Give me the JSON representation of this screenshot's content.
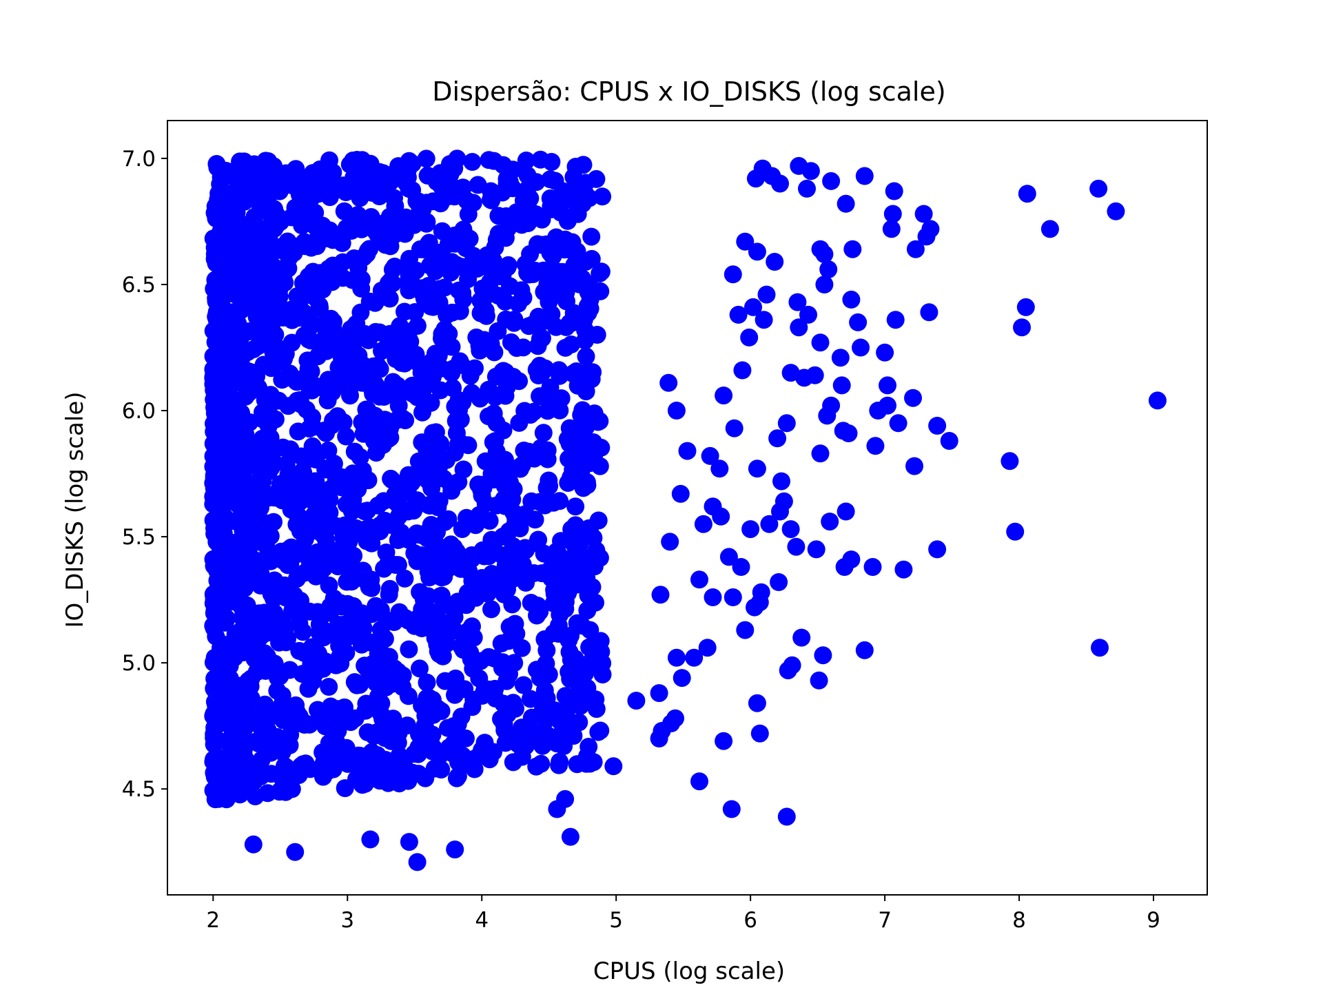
{
  "chart_data": {
    "type": "scatter",
    "title": "Dispersão: CPUS x IO_DISKS (log scale)",
    "xlabel": "CPUS (log scale)",
    "ylabel": "IO_DISKS (log scale)",
    "xlim": [
      1.66,
      9.4
    ],
    "ylim": [
      4.08,
      7.15
    ],
    "xticks": [
      2,
      3,
      4,
      5,
      6,
      7,
      8,
      9
    ],
    "yticks": [
      4.5,
      5.0,
      5.5,
      6.0,
      6.5,
      7.0
    ],
    "xtick_labels": [
      "2",
      "3",
      "4",
      "5",
      "6",
      "7",
      "8",
      "9"
    ],
    "ytick_labels": [
      "4.5",
      "5.0",
      "5.5",
      "6.0",
      "6.5",
      "7.0"
    ],
    "grid": false,
    "legend": "none",
    "marker_color": "#0000ff",
    "dense_region": {
      "x_range": [
        2.0,
        4.9
      ],
      "y_range": [
        4.45,
        7.0
      ],
      "note_color": "#0000ff"
    },
    "points": [
      [
        9.03,
        6.04
      ],
      [
        8.59,
        6.88
      ],
      [
        8.72,
        6.79
      ],
      [
        8.6,
        5.06
      ],
      [
        8.06,
        6.86
      ],
      [
        8.23,
        6.72
      ],
      [
        8.05,
        6.41
      ],
      [
        8.02,
        6.33
      ],
      [
        7.93,
        5.8
      ],
      [
        7.97,
        5.52
      ],
      [
        7.39,
        5.45
      ],
      [
        7.39,
        5.94
      ],
      [
        7.48,
        5.88
      ],
      [
        7.33,
        6.39
      ],
      [
        7.29,
        6.78
      ],
      [
        7.34,
        6.72
      ],
      [
        7.31,
        6.69
      ],
      [
        7.23,
        6.64
      ],
      [
        7.21,
        6.05
      ],
      [
        7.22,
        5.78
      ],
      [
        7.14,
        5.37
      ],
      [
        7.1,
        5.95
      ],
      [
        7.08,
        6.36
      ],
      [
        7.05,
        6.72
      ],
      [
        7.06,
        6.78
      ],
      [
        7.07,
        6.87
      ],
      [
        7.02,
        6.1
      ],
      [
        7.0,
        6.23
      ],
      [
        7.02,
        6.02
      ],
      [
        6.95,
        6.0
      ],
      [
        6.93,
        5.86
      ],
      [
        6.91,
        5.38
      ],
      [
        6.85,
        5.05
      ],
      [
        6.75,
        5.41
      ],
      [
        6.7,
        5.38
      ],
      [
        6.71,
        5.6
      ],
      [
        6.68,
        6.1
      ],
      [
        6.67,
        6.21
      ],
      [
        6.73,
        5.91
      ],
      [
        6.69,
        5.92
      ],
      [
        6.75,
        6.44
      ],
      [
        6.82,
        6.25
      ],
      [
        6.8,
        6.35
      ],
      [
        6.85,
        6.93
      ],
      [
        6.76,
        6.64
      ],
      [
        6.71,
        6.82
      ],
      [
        6.6,
        6.91
      ],
      [
        6.58,
        6.56
      ],
      [
        6.55,
        6.5
      ],
      [
        6.55,
        6.62
      ],
      [
        6.52,
        6.64
      ],
      [
        6.59,
        5.56
      ],
      [
        6.49,
        5.45
      ],
      [
        6.52,
        5.83
      ],
      [
        6.57,
        5.98
      ],
      [
        6.6,
        6.02
      ],
      [
        6.52,
        6.27
      ],
      [
        6.48,
        6.14
      ],
      [
        6.43,
        6.38
      ],
      [
        6.35,
        6.43
      ],
      [
        6.36,
        6.33
      ],
      [
        6.4,
        6.13
      ],
      [
        6.3,
        6.15
      ],
      [
        6.27,
        5.95
      ],
      [
        6.2,
        5.89
      ],
      [
        6.23,
        5.72
      ],
      [
        6.22,
        5.6
      ],
      [
        6.25,
        5.64
      ],
      [
        6.3,
        5.53
      ],
      [
        6.34,
        5.46
      ],
      [
        6.21,
        5.32
      ],
      [
        6.14,
        5.55
      ],
      [
        6.08,
        5.28
      ],
      [
        6.03,
        5.22
      ],
      [
        6.07,
        5.24
      ],
      [
        6.38,
        5.1
      ],
      [
        6.28,
        4.97
      ],
      [
        6.31,
        4.99
      ],
      [
        6.54,
        5.03
      ],
      [
        6.51,
        4.93
      ],
      [
        6.05,
        4.84
      ],
      [
        6.07,
        4.72
      ],
      [
        5.86,
        4.42
      ],
      [
        6.27,
        4.39
      ],
      [
        5.62,
        4.53
      ],
      [
        5.8,
        4.69
      ],
      [
        4.98,
        4.59
      ],
      [
        4.66,
        4.31
      ],
      [
        4.56,
        4.42
      ],
      [
        4.62,
        4.46
      ],
      [
        3.52,
        4.21
      ],
      [
        3.8,
        4.26
      ],
      [
        2.61,
        4.25
      ],
      [
        2.3,
        4.28
      ],
      [
        3.17,
        4.3
      ],
      [
        3.46,
        4.29
      ],
      [
        5.96,
        5.13
      ],
      [
        5.87,
        5.26
      ],
      [
        5.84,
        5.42
      ],
      [
        5.93,
        5.38
      ],
      [
        6.0,
        5.53
      ],
      [
        6.05,
        5.77
      ],
      [
        5.78,
        5.58
      ],
      [
        5.72,
        5.62
      ],
      [
        5.65,
        5.55
      ],
      [
        5.77,
        5.77
      ],
      [
        5.7,
        5.82
      ],
      [
        5.88,
        5.93
      ],
      [
        5.8,
        6.06
      ],
      [
        5.94,
        6.16
      ],
      [
        5.99,
        6.29
      ],
      [
        5.91,
        6.38
      ],
      [
        6.02,
        6.41
      ],
      [
        6.1,
        6.36
      ],
      [
        6.12,
        6.46
      ],
      [
        6.18,
        6.59
      ],
      [
        6.05,
        6.63
      ],
      [
        5.96,
        6.67
      ],
      [
        5.87,
        6.54
      ],
      [
        6.04,
        6.92
      ],
      [
        6.09,
        6.96
      ],
      [
        6.16,
        6.93
      ],
      [
        6.22,
        6.9
      ],
      [
        6.36,
        6.97
      ],
      [
        6.45,
        6.95
      ],
      [
        6.42,
        6.88
      ],
      [
        5.72,
        5.26
      ],
      [
        5.62,
        5.33
      ],
      [
        5.68,
        5.06
      ],
      [
        5.58,
        5.02
      ],
      [
        5.45,
        5.02
      ],
      [
        5.49,
        4.94
      ],
      [
        5.44,
        4.78
      ],
      [
        5.41,
        4.76
      ],
      [
        5.34,
        4.73
      ],
      [
        5.32,
        4.7
      ],
      [
        5.15,
        4.85
      ],
      [
        5.32,
        4.88
      ],
      [
        5.33,
        5.27
      ],
      [
        5.4,
        5.48
      ],
      [
        5.48,
        5.67
      ],
      [
        5.53,
        5.84
      ],
      [
        5.45,
        6.0
      ],
      [
        5.39,
        6.11
      ]
    ]
  }
}
